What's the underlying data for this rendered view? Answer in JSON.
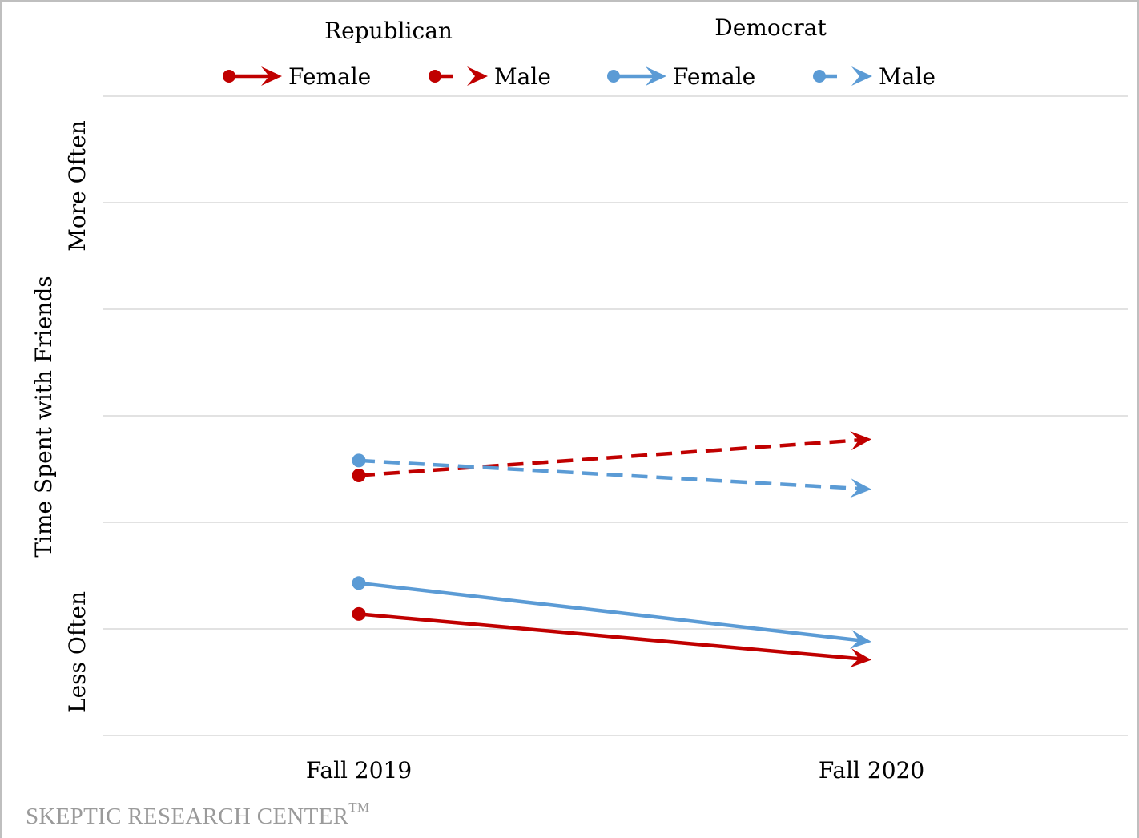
{
  "chart_data": {
    "type": "line",
    "legend_placement": "top",
    "legend_groups": [
      {
        "label": "Republican",
        "color": "#c00000",
        "series": [
          0,
          1
        ]
      },
      {
        "label": "Democrat",
        "color": "#5b9bd5",
        "series": [
          2,
          3
        ]
      }
    ],
    "ylabel": "Time Spent with Friends",
    "y_annotations": {
      "high": "More Often",
      "low": "Less Often"
    },
    "categories": [
      "Fall 2019",
      "Fall 2020"
    ],
    "ylim": [
      0,
      6
    ],
    "grid": true,
    "series": [
      {
        "name": "Female",
        "party": "Republican",
        "color": "#c00000",
        "dash": false,
        "values": [
          1.14,
          0.71
        ]
      },
      {
        "name": "Male",
        "party": "Republican",
        "color": "#c00000",
        "dash": true,
        "values": [
          2.44,
          2.78
        ]
      },
      {
        "name": "Female",
        "party": "Democrat",
        "color": "#5b9bd5",
        "dash": false,
        "values": [
          1.43,
          0.88
        ]
      },
      {
        "name": "Male",
        "party": "Democrat",
        "color": "#5b9bd5",
        "dash": true,
        "values": [
          2.58,
          2.31
        ]
      }
    ]
  },
  "watermark": {
    "text": "SKEPTIC RESEARCH CENTER",
    "mark": "TM"
  }
}
